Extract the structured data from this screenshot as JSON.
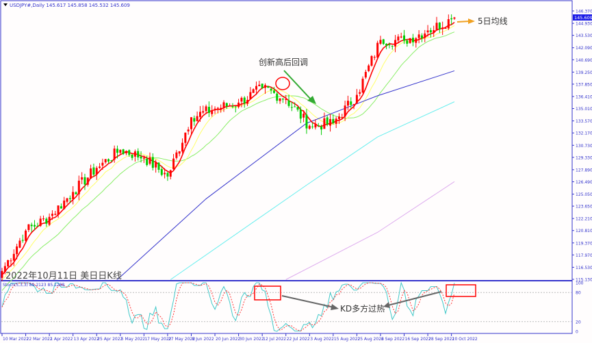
{
  "header": {
    "symbol": "USDJPY#,Daily",
    "ohlc": "145.617 145.858 145.532 145.609"
  },
  "current_price": "145.609",
  "annotations": {
    "pullback": "创新高后回调",
    "ma5": "5日均线",
    "kd": "KD多方过热",
    "caption": "2022年10月11日 美日日K线"
  },
  "stoch": {
    "label": "Stoch(5,3,3) 89.2123 85.1288",
    "levels": [
      "100",
      "80",
      "20",
      "0"
    ]
  },
  "colors": {
    "up": "#ff0000",
    "down": "#00cc00",
    "ma5": "#ff0000",
    "ma10": "#ffff66",
    "ma20": "#88ee66",
    "ma60": "#3333cc",
    "ma120": "#66eeee",
    "ma240": "#ddaaee",
    "axis": "#3333cc"
  },
  "chart_data": {
    "type": "candlestick",
    "price_ticks": [
      "146.370",
      "144.930",
      "143.530",
      "142.090",
      "140.690",
      "139.250",
      "137.850",
      "136.410",
      "135.010",
      "133.570",
      "132.170",
      "130.730",
      "129.330",
      "127.890",
      "126.490",
      "125.050",
      "123.650",
      "122.210",
      "120.810",
      "119.370",
      "117.970",
      "116.530",
      "115.130"
    ],
    "ylim": [
      115.13,
      146.37
    ],
    "date_labels": [
      "10 Mar 2022",
      "22 Mar 2022",
      "1 Apr 2022",
      "13 Apr 2022",
      "25 Apr 2022",
      "5 May 2022",
      "17 May 2022",
      "27 May 2022",
      "8 Jun 2022",
      "20 Jun 2022",
      "30 Jun 2022",
      "12 Jul 2022",
      "22 Jul 2022",
      "3 Aug 2022",
      "15 Aug 2022",
      "25 Aug 2022",
      "6 Sep 2022",
      "16 Sep 2022",
      "28 Sep 2022",
      "10 Oct 2022"
    ],
    "closes_at_labels": [
      116.1,
      120.8,
      122.4,
      125.3,
      128.1,
      130.2,
      129.3,
      127.1,
      134.0,
      135.0,
      135.7,
      137.4,
      136.1,
      133.0,
      133.3,
      136.6,
      143.0,
      142.9,
      144.1,
      145.4
    ],
    "last_close": 145.609,
    "ma_long": [
      {
        "name": "ma60",
        "points": [
          [
            39,
            115.1
          ],
          [
            69,
            124.5
          ],
          [
            103,
            133.3
          ],
          [
            127,
            136.5
          ],
          [
            153,
            139.4
          ]
        ]
      },
      {
        "name": "ma120",
        "points": [
          [
            57,
            115.1
          ],
          [
            103,
            126.1
          ],
          [
            127,
            131.7
          ],
          [
            153,
            135.8
          ]
        ]
      },
      {
        "name": "ma240",
        "points": [
          [
            96,
            115.1
          ],
          [
            127,
            120.6
          ],
          [
            153,
            126.5
          ]
        ]
      }
    ]
  }
}
